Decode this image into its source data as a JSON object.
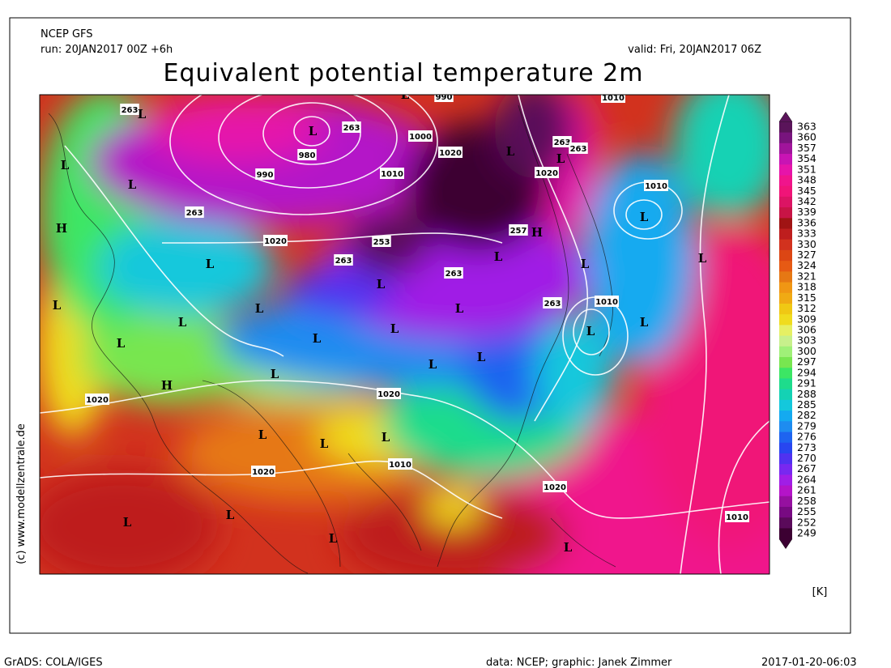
{
  "header": {
    "model": "NCEP GFS",
    "run": "run: 20JAN2017 00Z +6h",
    "valid": "valid: Fri, 20JAN2017 06Z",
    "title": "Equivalent potential temperature 2m"
  },
  "colorbar": {
    "levels": [
      363,
      360,
      357,
      354,
      351,
      348,
      345,
      342,
      339,
      336,
      333,
      330,
      327,
      324,
      321,
      318,
      315,
      312,
      309,
      306,
      303,
      300,
      297,
      294,
      291,
      288,
      285,
      282,
      279,
      276,
      273,
      270,
      267,
      264,
      261,
      258,
      255,
      252,
      249
    ],
    "colors": [
      "#5a145a",
      "#78147d",
      "#a0149b",
      "#c814b4",
      "#e614aa",
      "#f0148c",
      "#f01478",
      "#dc1464",
      "#c81446",
      "#a01414",
      "#be1e1e",
      "#d2321e",
      "#dc4614",
      "#e65a14",
      "#e67814",
      "#f09614",
      "#f0aa14",
      "#f0c814",
      "#f0dc1e",
      "#e6f064",
      "#c8f08c",
      "#a0f078",
      "#78e650",
      "#3ce664",
      "#1edc8c",
      "#14d2b4",
      "#14c8dc",
      "#14aaf0",
      "#1e8cf0",
      "#1e64f0",
      "#2846f0",
      "#5032f0",
      "#7828f0",
      "#a01ee6",
      "#b414c8",
      "#9610a0",
      "#780a82",
      "#5a0a5a",
      "#3c0032"
    ],
    "unit": "[K]"
  },
  "map_labels": [
    "L",
    "L",
    "990",
    "1010",
    "263",
    "L",
    "L",
    "263",
    "1000",
    "L",
    "263",
    "263",
    "980",
    "1020",
    "L",
    "990",
    "1010",
    "1020",
    "L",
    "L",
    "1010",
    "L",
    "263",
    "H",
    "1020",
    "253",
    "257",
    "H",
    "L",
    "263",
    "L",
    "L",
    "L",
    "263",
    "L",
    "L",
    "L",
    "1010",
    "263",
    "L",
    "L",
    "L",
    "L",
    "L",
    "L",
    "L",
    "L",
    "L",
    "L",
    "H",
    "1020",
    "1020",
    "L",
    "L",
    "L",
    "1010",
    "1020",
    "1020",
    "L",
    "1010",
    "L",
    "L",
    "L"
  ],
  "credit": "(c) www.modellzentrale.de",
  "footer": {
    "left": "GrADS: COLA/IGES",
    "center": "data: NCEP; graphic: Janek Zimmer",
    "right": "2017-01-20-06:03"
  }
}
